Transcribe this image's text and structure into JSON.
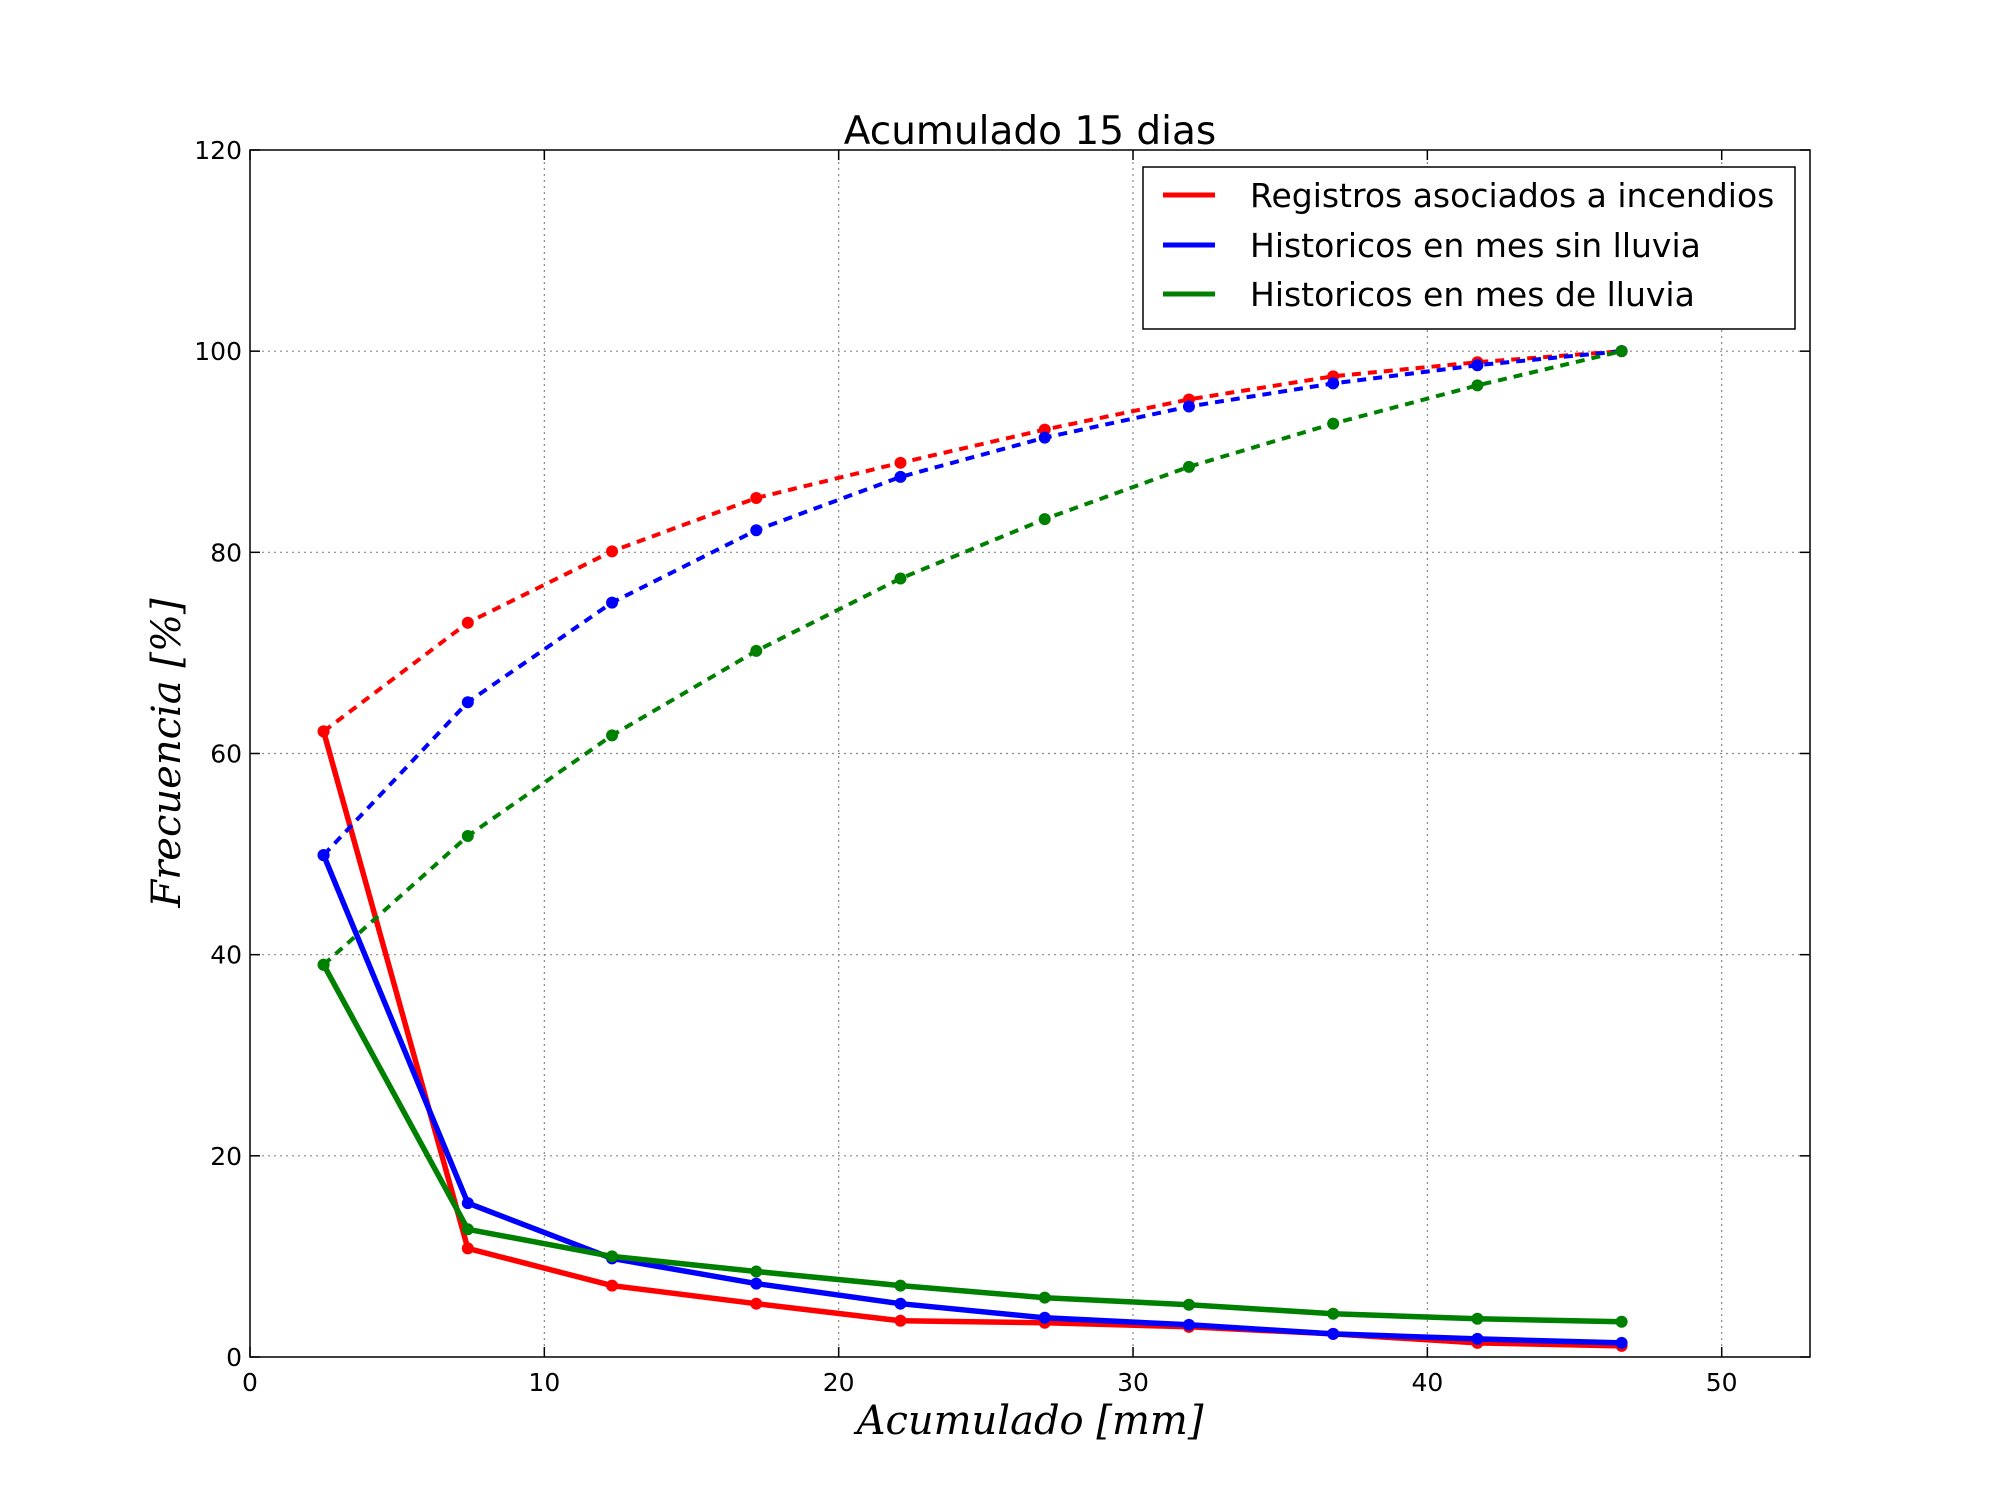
{
  "chart_data": {
    "type": "line",
    "title": "Acumulado 15 dias",
    "xlabel": "Acumulado [mm]",
    "ylabel": "Frecuencia [%]",
    "xlim": [
      0,
      53
    ],
    "ylim": [
      0,
      120
    ],
    "xticks": [
      0,
      10,
      20,
      30,
      40,
      50
    ],
    "yticks": [
      0,
      20,
      40,
      60,
      80,
      100,
      120
    ],
    "grid": true,
    "legend_position": "top-right",
    "x": [
      2.5,
      7.4,
      12.3,
      17.2,
      22.1,
      27.0,
      31.9,
      36.8,
      41.7,
      46.6
    ],
    "series": [
      {
        "name": "Registros asociados a incendios",
        "color": "#ff0000",
        "frequency": [
          62.2,
          10.8,
          7.1,
          5.3,
          3.6,
          3.4,
          3.0,
          2.3,
          1.4,
          1.1
        ],
        "cumulative": [
          62.2,
          73.0,
          80.1,
          85.4,
          88.9,
          92.2,
          95.2,
          97.5,
          98.9,
          100
        ]
      },
      {
        "name": "Historicos en mes sin lluvia",
        "color": "#0000ff",
        "frequency": [
          49.9,
          15.3,
          9.8,
          7.3,
          5.3,
          3.9,
          3.2,
          2.3,
          1.8,
          1.4
        ],
        "cumulative": [
          49.9,
          65.1,
          75.0,
          82.2,
          87.5,
          91.4,
          94.5,
          96.8,
          98.6,
          100
        ]
      },
      {
        "name": "Historicos en mes de lluvia",
        "color": "#008000",
        "frequency": [
          39.0,
          12.7,
          10.0,
          8.5,
          7.1,
          5.9,
          5.2,
          4.3,
          3.8,
          3.5
        ],
        "cumulative": [
          39.0,
          51.8,
          61.8,
          70.2,
          77.4,
          83.3,
          88.5,
          92.8,
          96.6,
          100
        ]
      }
    ]
  }
}
